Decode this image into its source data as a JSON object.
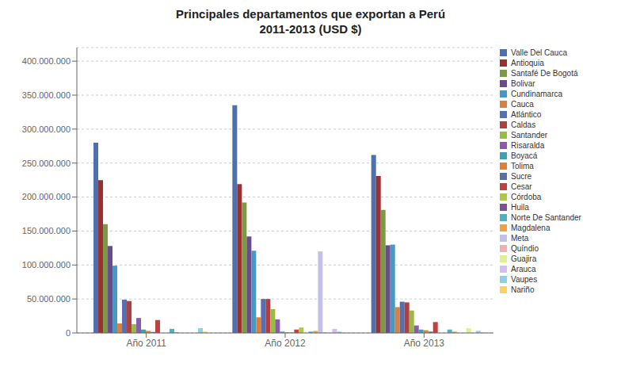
{
  "chart_data": {
    "type": "bar",
    "title": "Principales departamentos que exportan a Perú\n2011-2013 (USD $)",
    "categories": [
      "Año 2011",
      "Año 2012",
      "Año 2013"
    ],
    "series": [
      {
        "name": "Valle Del Cauca",
        "color": "#4f6fad",
        "values": [
          280000000,
          335000000,
          262000000
        ]
      },
      {
        "name": "Antioquia",
        "color": "#9b3030",
        "values": [
          225000000,
          219000000,
          231000000
        ]
      },
      {
        "name": "Santafé De Bogotá",
        "color": "#7a9a48",
        "values": [
          160000000,
          192000000,
          181000000
        ]
      },
      {
        "name": "Bolivar",
        "color": "#6b4a8e",
        "values": [
          128000000,
          142000000,
          129000000
        ]
      },
      {
        "name": "Cundinamarca",
        "color": "#4898c4",
        "values": [
          99000000,
          121000000,
          130000000
        ]
      },
      {
        "name": "Cauca",
        "color": "#d88040",
        "values": [
          14000000,
          23000000,
          38000000
        ]
      },
      {
        "name": "Atlántico",
        "color": "#5570b0",
        "values": [
          49000000,
          50000000,
          46000000
        ]
      },
      {
        "name": "Caldas",
        "color": "#b04040",
        "values": [
          47000000,
          50000000,
          45000000
        ]
      },
      {
        "name": "Santander",
        "color": "#9aba48",
        "values": [
          13000000,
          35000000,
          33000000
        ]
      },
      {
        "name": "Risaralda",
        "color": "#8c5aac",
        "values": [
          22000000,
          20000000,
          11000000
        ]
      },
      {
        "name": "Boyacá",
        "color": "#40a0b0",
        "values": [
          5000000,
          2000000,
          5000000
        ]
      },
      {
        "name": "Tolima",
        "color": "#e08030",
        "values": [
          3000000,
          1000000,
          4000000
        ]
      },
      {
        "name": "Sucre",
        "color": "#5a70a0",
        "values": [
          1500000,
          500000,
          2000000
        ]
      },
      {
        "name": "Cesar",
        "color": "#c04040",
        "values": [
          19000000,
          5000000,
          16000000
        ]
      },
      {
        "name": "Córdoba",
        "color": "#b0c848",
        "values": [
          0,
          8000000,
          0
        ]
      },
      {
        "name": "Huila",
        "color": "#805090",
        "values": [
          0,
          0,
          0
        ]
      },
      {
        "name": "Norte De Santander",
        "color": "#50b0c0",
        "values": [
          6000000,
          2000000,
          5000000
        ]
      },
      {
        "name": "Magdalena",
        "color": "#f0a040",
        "values": [
          1000000,
          3000000,
          2000000
        ]
      },
      {
        "name": "Meta",
        "color": "#c0c0e8",
        "values": [
          0,
          120000000,
          0
        ]
      },
      {
        "name": "Quíndio",
        "color": "#f0b0b0",
        "values": [
          0,
          1000000,
          0
        ]
      },
      {
        "name": "Guajira",
        "color": "#e0f090",
        "values": [
          0,
          0,
          7000000
        ]
      },
      {
        "name": "Arauca",
        "color": "#d0c0f0",
        "values": [
          0,
          6000000,
          0
        ]
      },
      {
        "name": "Vaupes",
        "color": "#90d0e0",
        "values": [
          7000000,
          2000000,
          3000000
        ]
      },
      {
        "name": "Nariño",
        "color": "#ffd060",
        "values": [
          2000000,
          500000,
          1000000
        ]
      }
    ],
    "ylim": [
      0,
      420000000
    ],
    "yticks": [
      0,
      {
        "value": 50000000,
        "label": "50.000.000"
      },
      {
        "value": 100000000,
        "label": "100.000.000"
      },
      {
        "value": 150000000,
        "label": "150.000.000"
      },
      {
        "value": 200000000,
        "label": "200.000.000"
      },
      {
        "value": 250000000,
        "label": "250.000.000"
      },
      {
        "value": 300000000,
        "label": "300.000.000"
      },
      {
        "value": 350000000,
        "label": "350.000.000"
      },
      {
        "value": 400000000,
        "label": "400.000.000"
      }
    ],
    "grid": true,
    "legend": "right"
  }
}
